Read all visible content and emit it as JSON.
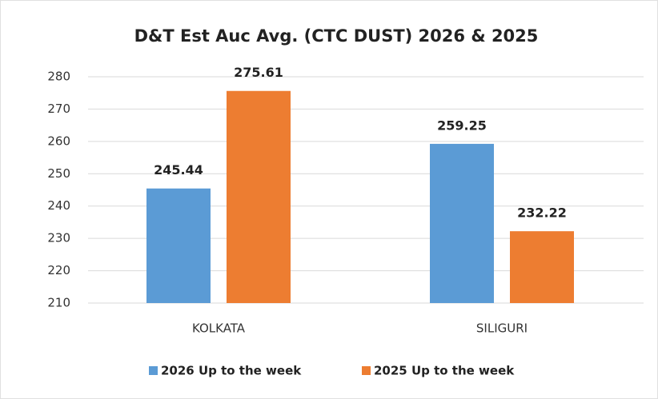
{
  "chart_data": {
    "type": "bar",
    "title": "D&T Est Auc Avg. (CTC DUST) 2026 & 2025",
    "categories": [
      "KOLKATA",
      "SILIGURI"
    ],
    "series": [
      {
        "name": "2026 Up to the week",
        "color": "#5b9bd5",
        "values": [
          245.44,
          259.25
        ]
      },
      {
        "name": "2025 Up to the week",
        "color": "#ed7d31",
        "values": [
          275.61,
          232.22
        ]
      }
    ],
    "ylim": [
      210,
      280
    ],
    "yticks": [
      210,
      220,
      230,
      240,
      250,
      260,
      270,
      280
    ],
    "grid": true,
    "legend": "bottom"
  }
}
